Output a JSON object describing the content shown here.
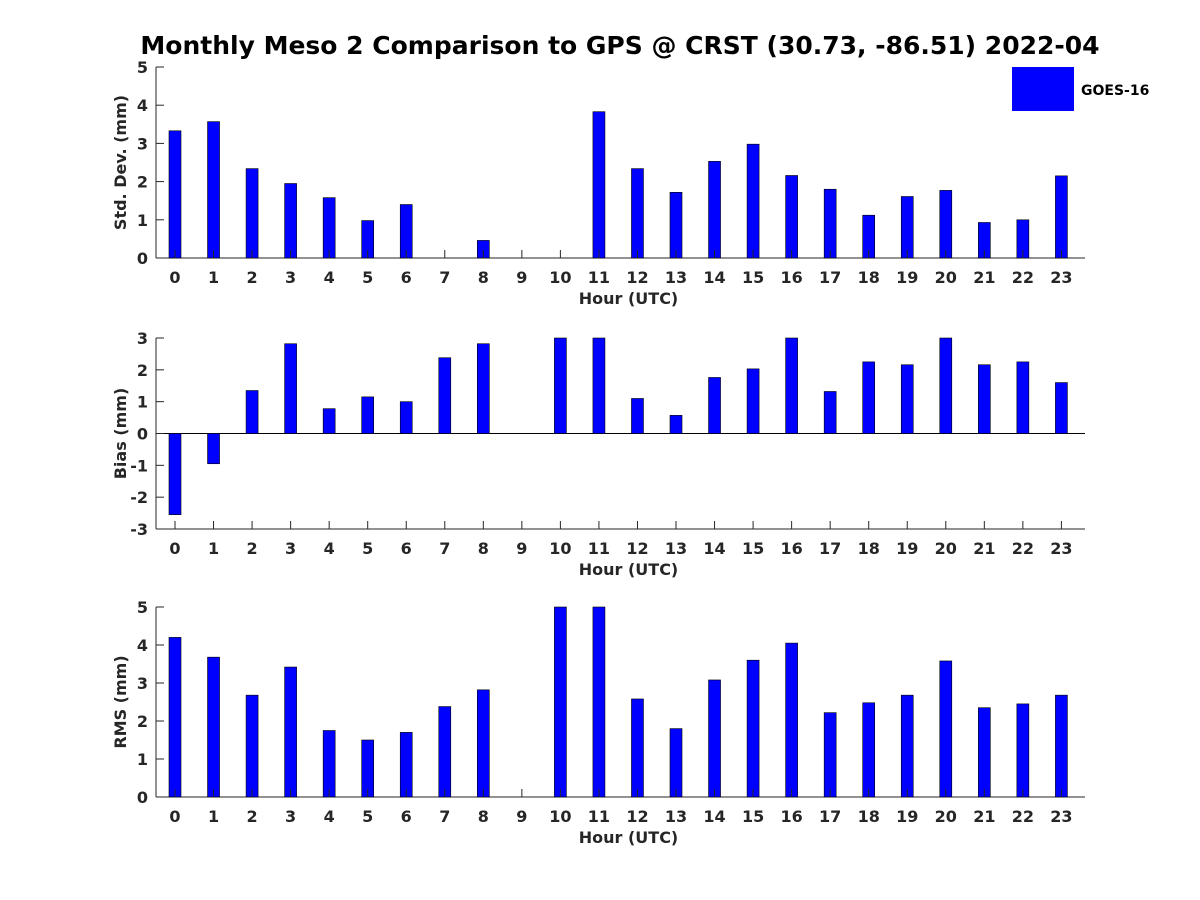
{
  "title": "Monthly Meso 2 Comparison to GPS @ CRST (30.73, -86.51) 2022-04",
  "legend": {
    "label": "GOES-16",
    "color": "#0000ff"
  },
  "chart_data": [
    {
      "type": "bar",
      "name": "std-dev",
      "categories": [
        "0",
        "1",
        "2",
        "3",
        "4",
        "5",
        "6",
        "7",
        "8",
        "9",
        "10",
        "11",
        "12",
        "13",
        "14",
        "15",
        "16",
        "17",
        "18",
        "19",
        "20",
        "21",
        "22",
        "23"
      ],
      "values": [
        3.33,
        3.57,
        2.34,
        1.95,
        1.58,
        0.98,
        1.4,
        0,
        0.46,
        0,
        0,
        3.83,
        2.34,
        1.72,
        2.53,
        2.98,
        2.16,
        1.8,
        1.12,
        1.61,
        1.77,
        0.93,
        1.0,
        2.15
      ],
      "xlabel": "Hour (UTC)",
      "ylabel": "Std. Dev. (mm)",
      "ylim": [
        0,
        5
      ],
      "yticks": [
        "0",
        "1",
        "2",
        "3",
        "4",
        "5"
      ],
      "grid": false
    },
    {
      "type": "bar",
      "name": "bias",
      "categories": [
        "0",
        "1",
        "2",
        "3",
        "4",
        "5",
        "6",
        "7",
        "8",
        "9",
        "10",
        "11",
        "12",
        "13",
        "14",
        "15",
        "16",
        "17",
        "18",
        "19",
        "20",
        "21",
        "22",
        "23"
      ],
      "values": [
        -2.55,
        -0.95,
        1.35,
        2.82,
        0.78,
        1.15,
        1.0,
        2.38,
        2.82,
        0,
        3.0,
        3.0,
        1.1,
        0.57,
        1.76,
        2.03,
        3.0,
        1.32,
        2.25,
        2.16,
        3.0,
        2.16,
        2.25,
        1.6
      ],
      "xlabel": "Hour (UTC)",
      "ylabel": "Bias (mm)",
      "ylim": [
        -3,
        3
      ],
      "yticks": [
        "-3",
        "-2",
        "-1",
        "0",
        "1",
        "2",
        "3"
      ],
      "grid": false
    },
    {
      "type": "bar",
      "name": "rms",
      "categories": [
        "0",
        "1",
        "2",
        "3",
        "4",
        "5",
        "6",
        "7",
        "8",
        "9",
        "10",
        "11",
        "12",
        "13",
        "14",
        "15",
        "16",
        "17",
        "18",
        "19",
        "20",
        "21",
        "22",
        "23"
      ],
      "values": [
        4.2,
        3.68,
        2.68,
        3.42,
        1.75,
        1.5,
        1.7,
        2.38,
        2.82,
        0,
        5.0,
        5.0,
        2.58,
        1.8,
        3.08,
        3.6,
        4.05,
        2.22,
        2.48,
        2.68,
        3.58,
        2.35,
        2.45,
        2.68
      ],
      "xlabel": "Hour (UTC)",
      "ylabel": "RMS (mm)",
      "ylim": [
        0,
        5
      ],
      "yticks": [
        "0",
        "1",
        "2",
        "3",
        "4",
        "5"
      ],
      "grid": false
    }
  ]
}
